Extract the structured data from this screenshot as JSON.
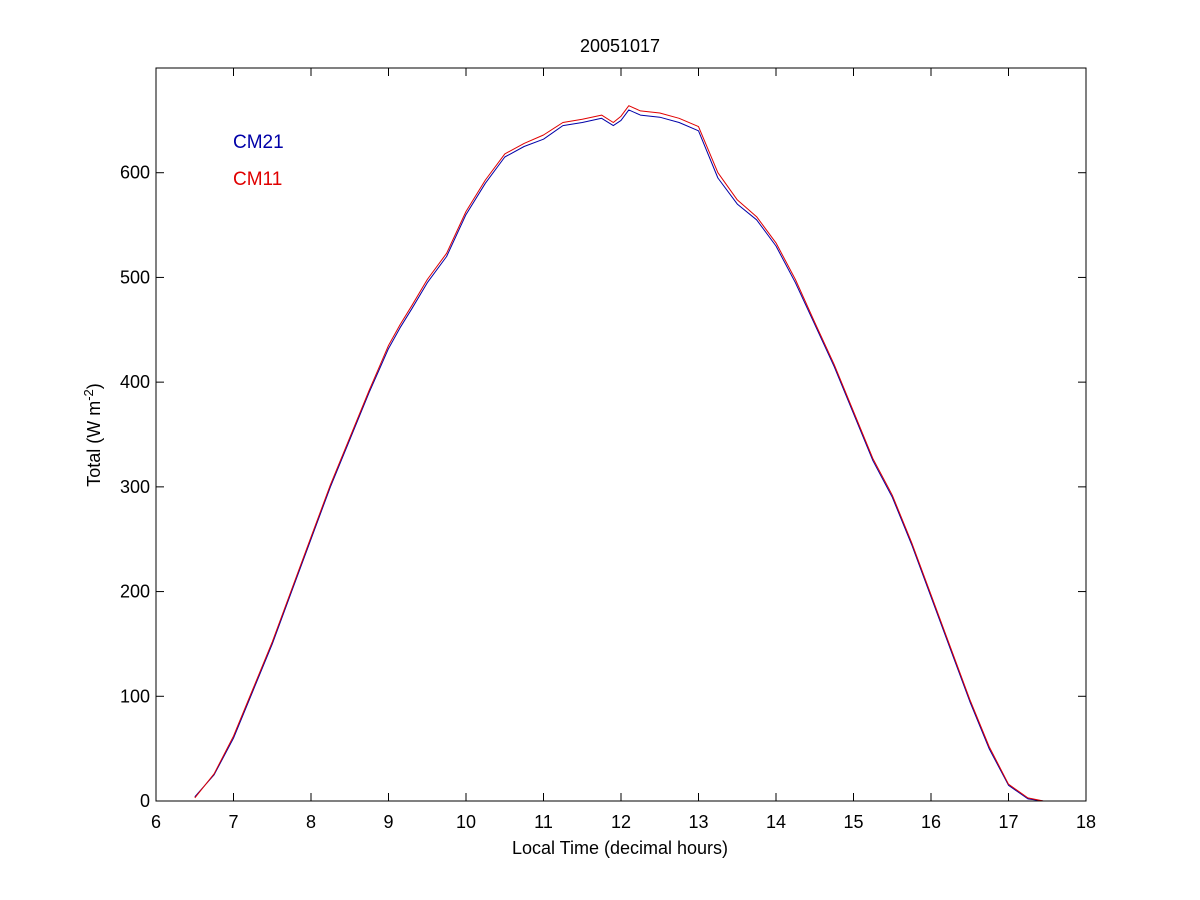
{
  "chart_data": {
    "type": "line",
    "title": "20051017",
    "xlabel": "Local Time (decimal hours)",
    "ylabel_parts": {
      "before": "Total (W m",
      "sup": "-2",
      "after": ")"
    },
    "xlim": [
      6,
      18
    ],
    "ylim": [
      0,
      700
    ],
    "xticks": [
      6,
      7,
      8,
      9,
      10,
      11,
      12,
      13,
      14,
      15,
      16,
      17,
      18
    ],
    "yticks": [
      0,
      100,
      200,
      300,
      400,
      500,
      600
    ],
    "grid": false,
    "legend_position": "top-left",
    "series": [
      {
        "name": "CM21",
        "color": "#0000a8",
        "x": [
          6.5,
          6.75,
          7.0,
          7.25,
          7.5,
          7.75,
          8.0,
          8.25,
          8.5,
          8.75,
          9.0,
          9.15,
          9.3,
          9.5,
          9.75,
          10.0,
          10.25,
          10.5,
          10.75,
          11.0,
          11.25,
          11.5,
          11.75,
          11.9,
          12.0,
          12.1,
          12.25,
          12.5,
          12.75,
          13.0,
          13.25,
          13.5,
          13.75,
          14.0,
          14.25,
          14.5,
          14.75,
          15.0,
          15.25,
          15.5,
          15.75,
          16.0,
          16.25,
          16.5,
          16.75,
          17.0,
          17.25,
          17.45
        ],
        "y": [
          4,
          25,
          60,
          105,
          150,
          200,
          250,
          300,
          345,
          390,
          432,
          452,
          470,
          495,
          520,
          560,
          590,
          615,
          625,
          632,
          645,
          648,
          652,
          645,
          650,
          660,
          655,
          653,
          648,
          640,
          595,
          570,
          555,
          530,
          495,
          455,
          415,
          370,
          325,
          290,
          245,
          195,
          145,
          95,
          50,
          15,
          2,
          0
        ]
      },
      {
        "name": "CM11",
        "color": "#e00000",
        "x": [
          6.5,
          6.75,
          7.0,
          7.25,
          7.5,
          7.75,
          8.0,
          8.25,
          8.5,
          8.75,
          9.0,
          9.15,
          9.3,
          9.5,
          9.75,
          10.0,
          10.25,
          10.5,
          10.75,
          11.0,
          11.25,
          11.5,
          11.75,
          11.9,
          12.0,
          12.1,
          12.25,
          12.5,
          12.75,
          13.0,
          13.25,
          13.5,
          13.75,
          14.0,
          14.25,
          14.5,
          14.75,
          15.0,
          15.25,
          15.5,
          15.75,
          16.0,
          16.25,
          16.5,
          16.75,
          17.0,
          17.25,
          17.45
        ],
        "y": [
          3,
          26,
          62,
          107,
          152,
          202,
          252,
          302,
          347,
          392,
          435,
          455,
          473,
          498,
          523,
          563,
          593,
          618,
          628,
          636,
          648,
          651,
          655,
          648,
          654,
          664,
          659,
          657,
          652,
          644,
          600,
          574,
          558,
          533,
          498,
          457,
          417,
          372,
          327,
          292,
          247,
          197,
          147,
          97,
          52,
          16,
          3,
          0
        ]
      }
    ]
  }
}
